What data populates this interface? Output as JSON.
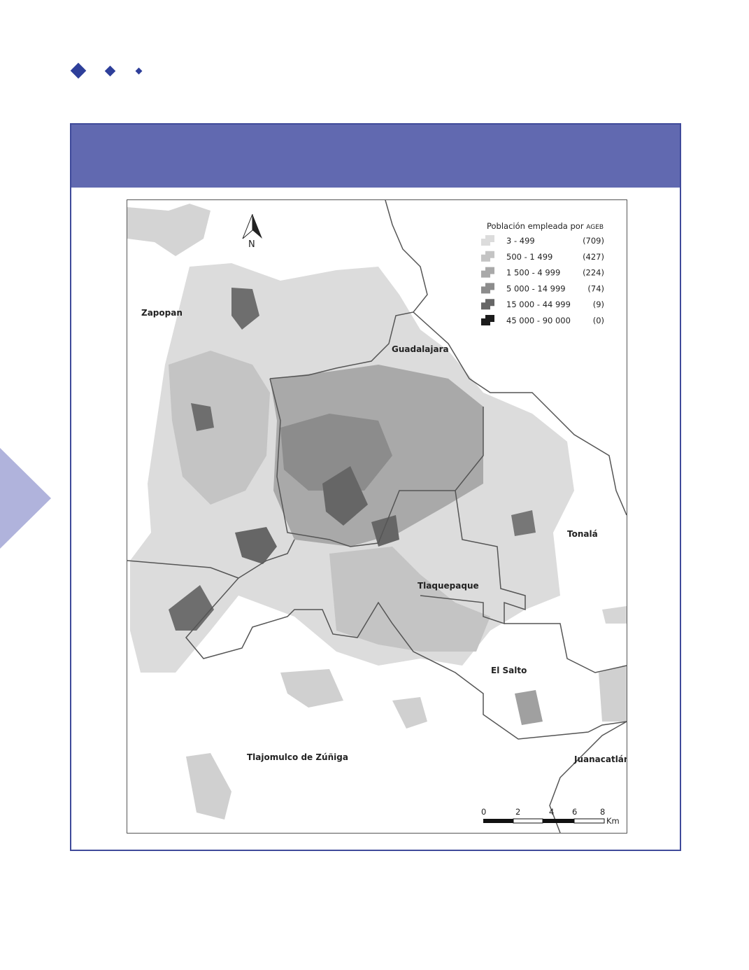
{
  "colors": {
    "accent": "#2e3f9a",
    "band": "#6169b0",
    "frame": "#3f4a9a",
    "side_triangle": "#b0b3dc"
  },
  "map": {
    "north_label": "N",
    "municipalities": [
      "Zapopan",
      "Guadalajara",
      "Tonalá",
      "Tlaquepaque",
      "El Salto",
      "Tlajomulco de Zúñiga",
      "Juanacatlán"
    ],
    "legend": {
      "title": "Población empleada por",
      "title_suffix": "AGEB",
      "items": [
        {
          "range": "3 - 499",
          "count": "(709)",
          "color": "#dcdcdc"
        },
        {
          "range": "500 - 1 499",
          "count": "(427)",
          "color": "#c4c4c4"
        },
        {
          "range": "1 500 - 4 999",
          "count": "(224)",
          "color": "#a9a9a9"
        },
        {
          "range": "5 000 - 14 999",
          "count": "(74)",
          "color": "#8c8c8c"
        },
        {
          "range": "15 000 - 44 999",
          "count": "(9)",
          "color": "#666666"
        },
        {
          "range": "45 000 - 90 000",
          "count": "(0)",
          "color": "#1c1c1c"
        }
      ]
    },
    "scale": {
      "ticks": [
        "0",
        "2",
        "4",
        "6",
        "8"
      ],
      "unit": "Km"
    }
  }
}
